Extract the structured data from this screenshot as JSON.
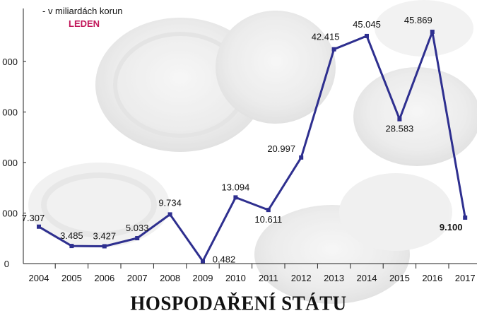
{
  "header": {
    "subtitle": "- v miliardách korun",
    "period": "LEDEN"
  },
  "footer": {
    "title": "HOSPODAŘENÍ STÁTU"
  },
  "colors": {
    "line": "#2e2f8f",
    "period": "#c2185b",
    "axis": "#222222"
  },
  "chart_data": {
    "type": "line",
    "title": "HOSPODAŘENÍ STÁTU",
    "subtitle": "- v miliardách korun",
    "annotation": "LEDEN",
    "categories": [
      "2004",
      "2005",
      "2006",
      "2007",
      "2008",
      "2009",
      "2010",
      "2011",
      "2012",
      "2013",
      "2014",
      "2015",
      "2016",
      "2017"
    ],
    "series": [
      {
        "values": [
          7.307,
          3.485,
          3.427,
          5.033,
          9.734,
          0.482,
          13.094,
          10.611,
          20.997,
          42.415,
          45.045,
          28.583,
          45.869,
          9.1
        ],
        "labels": [
          "7.307",
          "3.485",
          "3.427",
          "5.033",
          "9.734",
          "0.482",
          "13.094",
          "10.611",
          "20.997",
          "42.415",
          "45.045",
          "28.583",
          "45.869",
          "9.100"
        ]
      }
    ],
    "y_ticks": [
      "0",
      "000",
      "000",
      "000",
      "000"
    ],
    "ylim": [
      0,
      51
    ],
    "grid": false
  }
}
